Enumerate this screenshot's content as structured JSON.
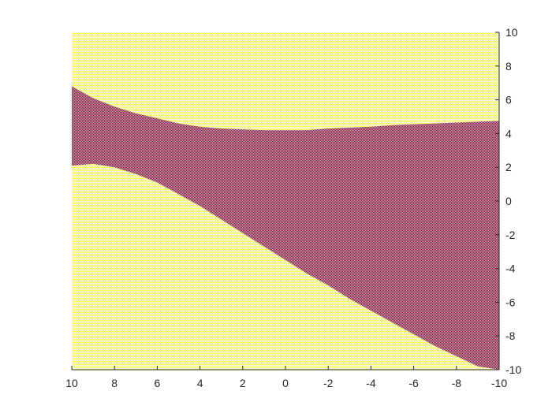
{
  "chart_data": {
    "type": "area",
    "title": "",
    "xlabel": "",
    "ylabel": "",
    "x_direction": "reversed",
    "y_axis_location": "right",
    "xlim": [
      -10,
      10
    ],
    "ylim": [
      -10,
      10
    ],
    "x_ticks": [
      10,
      8,
      6,
      4,
      2,
      0,
      -2,
      -4,
      -6,
      -8,
      -10
    ],
    "y_ticks": [
      10,
      8,
      6,
      4,
      2,
      0,
      -2,
      -4,
      -6,
      -8,
      -10
    ],
    "grid": false,
    "legend": "none",
    "background_color": "#ffff55",
    "region_color": "#8b1a4a",
    "region_upper_boundary": {
      "x": [
        10,
        9,
        8,
        7,
        6,
        5,
        4,
        3,
        2,
        1,
        0,
        -1,
        -2,
        -3,
        -4,
        -5,
        -6,
        -7,
        -8,
        -9,
        -10
      ],
      "y": [
        6.8,
        6.1,
        5.6,
        5.2,
        4.9,
        4.6,
        4.4,
        4.3,
        4.25,
        4.2,
        4.2,
        4.2,
        4.3,
        4.35,
        4.4,
        4.5,
        4.55,
        4.6,
        4.65,
        4.7,
        4.75
      ]
    },
    "region_lower_boundary": {
      "x": [
        10,
        9,
        8,
        7,
        6,
        5,
        4,
        3,
        2,
        1,
        0,
        -1,
        -2,
        -3,
        -4,
        -5,
        -6,
        -7,
        -8,
        -9,
        -10
      ],
      "y": [
        2.1,
        2.2,
        2.0,
        1.6,
        1.1,
        0.4,
        -0.3,
        -1.1,
        -1.9,
        -2.7,
        -3.5,
        -4.3,
        -5.0,
        -5.8,
        -6.5,
        -7.2,
        -7.9,
        -8.6,
        -9.2,
        -9.8,
        -10.0
      ]
    }
  }
}
